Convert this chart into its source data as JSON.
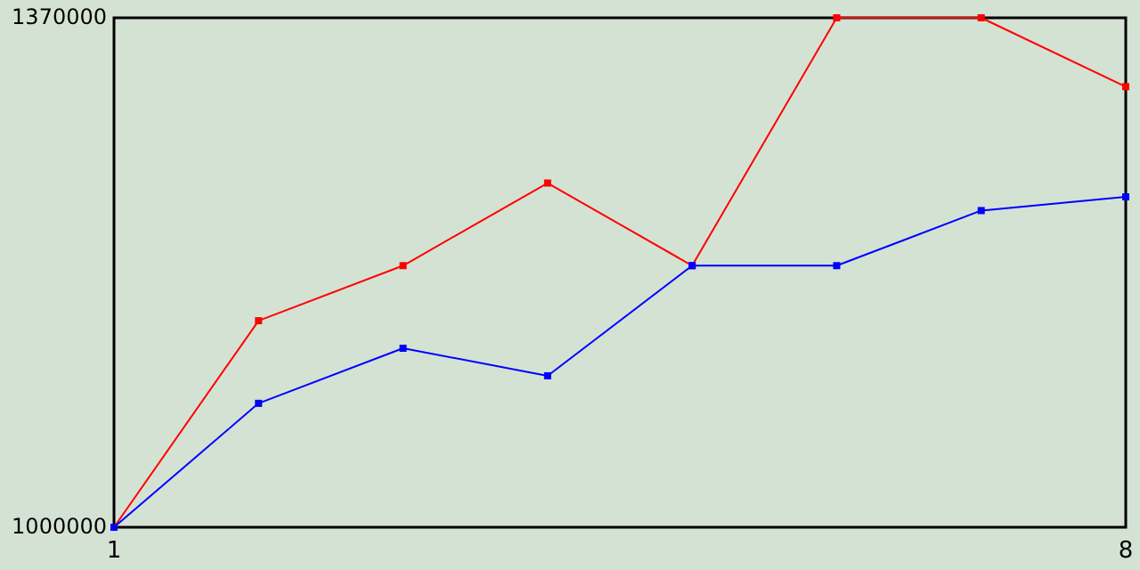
{
  "chart_data": {
    "type": "line",
    "x": [
      1,
      2,
      3,
      4,
      5,
      6,
      7,
      8
    ],
    "series": [
      {
        "color": "#ff0000",
        "values": [
          1000000,
          1150000,
          1190000,
          1250000,
          1190000,
          1370000,
          1370000,
          1320000
        ]
      },
      {
        "color": "#0000ff",
        "values": [
          1000000,
          1090000,
          1130000,
          1110000,
          1190000,
          1190000,
          1230000,
          1240000
        ]
      }
    ],
    "xlim": [
      1,
      8
    ],
    "xticks": [
      1,
      8
    ],
    "ylim": [
      1000000,
      1370000
    ],
    "yticks": [
      1000000,
      1370000
    ],
    "marker": "square"
  }
}
